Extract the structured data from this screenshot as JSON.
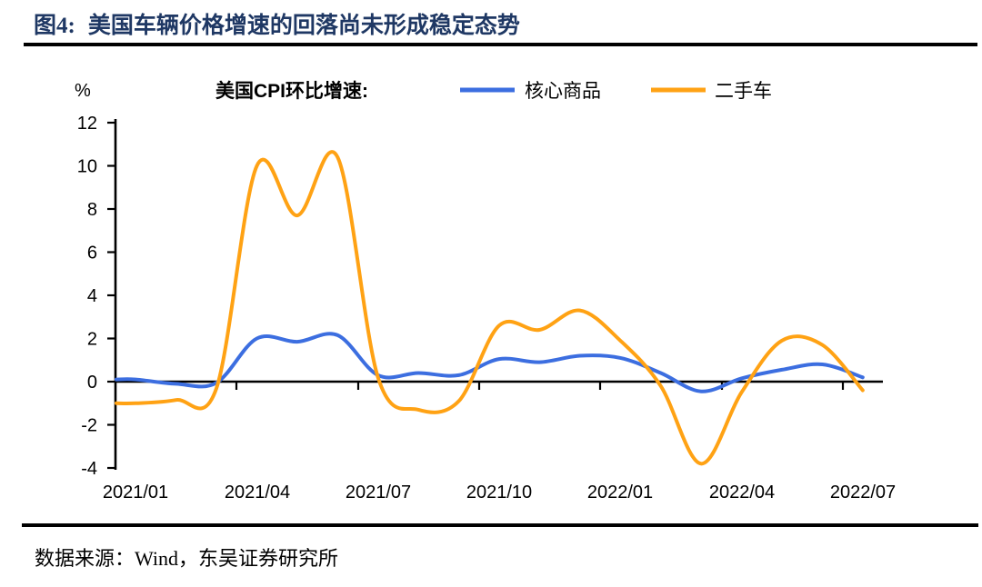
{
  "page": {
    "figure_label": "图4:",
    "title": "美国车辆价格增速的回落尚未形成稳定态势",
    "title_color": "#1F3864",
    "source_text": "数据来源：Wind，东吴证券研究所"
  },
  "chart_data": {
    "type": "line",
    "title": "美国CPI环比增速:",
    "unit_label": "%",
    "grid": false,
    "legend_position": "top",
    "ylim": [
      -4,
      12
    ],
    "y_ticks": [
      "12",
      "10",
      "8",
      "6",
      "4",
      "2",
      "0",
      "-2",
      "-4"
    ],
    "x_tick_labels": [
      "2021/01",
      "2021/04",
      "2021/07",
      "2021/10",
      "2022/01",
      "2022/04",
      "2022/07"
    ],
    "x": [
      "2021/01",
      "2021/02",
      "2021/03",
      "2021/04",
      "2021/05",
      "2021/06",
      "2021/07",
      "2021/08",
      "2021/09",
      "2021/10",
      "2021/11",
      "2021/12",
      "2022/01",
      "2022/02",
      "2022/03",
      "2022/04",
      "2022/05",
      "2022/06",
      "2022/07"
    ],
    "series": [
      {
        "name": "核心商品",
        "color": "#3C6EE0",
        "values": [
          0.1,
          -0.1,
          -0.05,
          2.0,
          1.85,
          2.15,
          0.3,
          0.4,
          0.3,
          1.05,
          0.9,
          1.2,
          1.1,
          0.4,
          -0.45,
          0.15,
          0.55,
          0.8,
          0.2
        ]
      },
      {
        "name": "二手车",
        "color": "#FFA214",
        "values": [
          -1.0,
          -0.85,
          -0.3,
          10.0,
          7.7,
          10.4,
          0.2,
          -1.3,
          -0.9,
          2.6,
          2.4,
          3.3,
          1.9,
          -0.2,
          -3.8,
          -0.5,
          1.9,
          1.7,
          -0.4
        ]
      }
    ]
  }
}
